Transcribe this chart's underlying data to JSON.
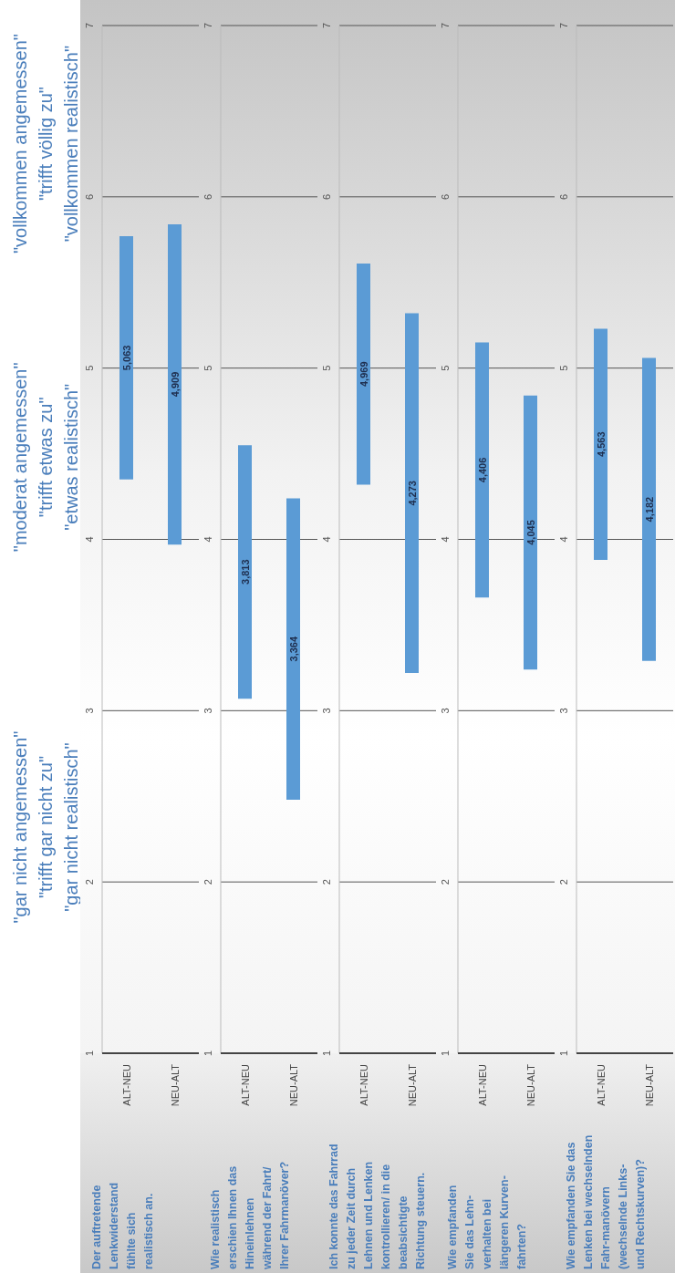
{
  "chart_data": [
    {
      "type": "bar",
      "categories": [
        "ALT-NEU",
        "NEU-ALT"
      ],
      "base": [
        4.35,
        3.97
      ],
      "values": [
        1.42,
        1.87
      ],
      "color": "#5b9bd5",
      "ylim": [
        1,
        7
      ],
      "yticks": [
        1,
        2,
        3,
        4,
        5,
        6,
        7
      ],
      "grid": "y",
      "annotations": [
        "\"gar nicht angemessen\"\n\"trifft gar nicht zu\"\n\"gar nicht realistisch\"",
        "\"moderat angemessen\"\n\"trifft etwas zu\"\n\"etwas realistisch\"",
        "\"vollkommen angemessen\"\n\"trifft völlig zu\"\n\"vollkommen realistisch\"",
        "Der auftretende\nLenkwiderstand\nfühlte sich\nrealistisch an.",
        "5,063",
        "4,909"
      ]
    },
    {
      "type": "bar",
      "categories": [
        "ALT-NEU",
        "NEU-ALT"
      ],
      "base": [
        3.07,
        2.48
      ],
      "values": [
        1.48,
        1.76
      ],
      "color": "#5b9bd5",
      "ylim": [
        1,
        7
      ],
      "yticks": [
        1,
        2,
        3,
        4,
        5,
        6,
        7
      ],
      "grid": "y",
      "annotations": [
        "Wie realistisch\nerschien Ihnen das\nHineinlehnen\nwährend der Fahrt/\nIhrer Fahrmanöver?",
        "3,813",
        "3,364"
      ]
    },
    {
      "type": "bar",
      "categories": [
        "ALT-NEU",
        "NEU-ALT"
      ],
      "base": [
        4.32,
        3.22
      ],
      "values": [
        1.29,
        2.1
      ],
      "color": "#5b9bd5",
      "ylim": [
        1,
        7
      ],
      "yticks": [
        1,
        2,
        3,
        4,
        5,
        6,
        7
      ],
      "grid": "y",
      "annotations": [
        "Ich konnte das Fahrrad\nzu jeder Zeit durch\nLehnen und Lenken\nkontrollieren/ in die\nbeabsichtigte\nRichtung steuern.",
        "4,969",
        "4,273"
      ]
    },
    {
      "type": "bar",
      "categories": [
        "ALT-NEU",
        "NEU-ALT"
      ],
      "base": [
        3.66,
        3.24
      ],
      "values": [
        1.49,
        1.6
      ],
      "color": "#5b9bd5",
      "ylim": [
        1,
        7
      ],
      "yticks": [
        1,
        2,
        3,
        4,
        5,
        6,
        7
      ],
      "grid": "y",
      "annotations": [
        "Wie empfanden\nSie das Lehn-\nverhalten bei\nlängeren Kurven-\nfahrten?",
        "4,406",
        "4,045"
      ]
    },
    {
      "type": "bar",
      "categories": [
        "ALT-NEU",
        "NEU-ALT"
      ],
      "base": [
        3.88,
        3.29
      ],
      "values": [
        1.35,
        1.77
      ],
      "color": "#5b9bd5",
      "ylim": [
        1,
        7
      ],
      "yticks": [
        1,
        2,
        3,
        4,
        5,
        6,
        7
      ],
      "grid": "y",
      "annotations": [
        "Wie empfanden Sie das\nLenken bei wechselnden\nFahr-manövern\n(wechselnde Links-\nund Rechtskurven)?",
        "4,563",
        "4,182"
      ]
    }
  ]
}
